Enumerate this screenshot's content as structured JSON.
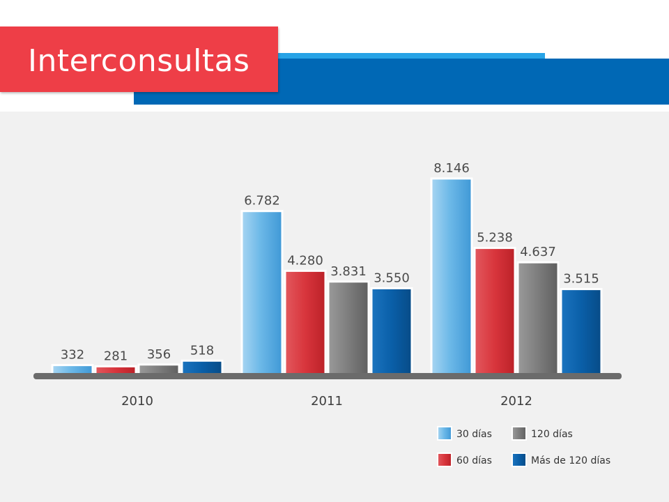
{
  "title": "Interconsultas",
  "colors": {
    "30": "#5fb0e3",
    "60": "#d8353c",
    "120": "#7d7d7d",
    "mas120": "#0a5fa8",
    "header_red": "#ee3e47",
    "header_blue": "#0068b5"
  },
  "chart_data": {
    "type": "bar",
    "categories": [
      "2010",
      "2011",
      "2012"
    ],
    "series": [
      {
        "name": "30 días",
        "key": "30",
        "values": [
          332,
          6782,
          8146
        ],
        "labels": [
          "332",
          "6.782",
          "8.146"
        ]
      },
      {
        "name": "60 días",
        "key": "60",
        "values": [
          281,
          4280,
          5238
        ],
        "labels": [
          "281",
          "4.280",
          "5.238"
        ]
      },
      {
        "name": "120 días",
        "key": "120",
        "values": [
          356,
          3831,
          4637
        ],
        "labels": [
          "356",
          "3.831",
          "4.637"
        ]
      },
      {
        "name": "Más de 120 días",
        "key": "mas120",
        "values": [
          518,
          3550,
          3515
        ],
        "labels": [
          "518",
          "3.550",
          "3.515"
        ]
      }
    ],
    "ylim": [
      0,
      8146
    ],
    "legend_position": "bottom-right",
    "grid": false
  },
  "legend": {
    "items": [
      {
        "label": "30 días",
        "key": "30"
      },
      {
        "label": "120 días",
        "key": "120"
      },
      {
        "label": "60 días",
        "key": "60"
      },
      {
        "label": "Más de 120 días",
        "key": "mas120"
      }
    ]
  }
}
